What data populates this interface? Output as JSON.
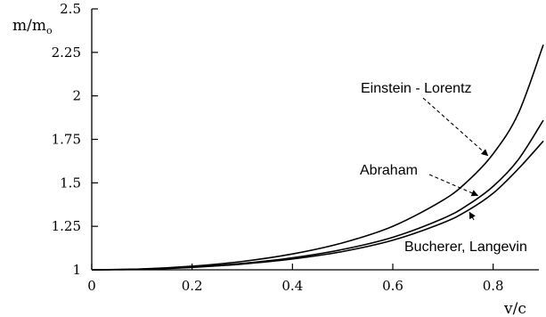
{
  "chart_data": {
    "type": "line",
    "title": "",
    "xlabel": "v/c",
    "ylabel_main": "m/m",
    "ylabel_sub": "o",
    "xlim": [
      0,
      0.9
    ],
    "ylim": [
      1,
      2.5
    ],
    "x_ticks": [
      0,
      0.2,
      0.4,
      0.6,
      0.8
    ],
    "x_tick_labels": [
      "0",
      "0.2",
      "0.4",
      "0.6",
      "0.8"
    ],
    "y_ticks": [
      1,
      1.25,
      1.5,
      1.75,
      2,
      2.25,
      2.5
    ],
    "y_tick_labels": [
      "1",
      "1.25",
      "1.5",
      "1.75",
      "2",
      "2.25",
      "2.5"
    ],
    "grid": false,
    "x": [
      0,
      0.1,
      0.2,
      0.3,
      0.4,
      0.5,
      0.6,
      0.7,
      0.75,
      0.8,
      0.85,
      0.9
    ],
    "series": [
      {
        "name": "Einstein - Lorentz",
        "values": [
          1.0,
          1.005,
          1.021,
          1.048,
          1.091,
          1.155,
          1.25,
          1.4,
          1.512,
          1.667,
          1.898,
          2.294
        ]
      },
      {
        "name": "Abraham",
        "values": [
          1.0,
          1.004,
          1.016,
          1.037,
          1.069,
          1.117,
          1.187,
          1.295,
          1.374,
          1.48,
          1.633,
          1.86
        ]
      },
      {
        "name": "Bucherer, Langevin",
        "values": [
          1.0,
          1.003,
          1.014,
          1.033,
          1.062,
          1.105,
          1.17,
          1.27,
          1.342,
          1.44,
          1.58,
          1.74
        ]
      }
    ],
    "annotations": [
      {
        "text": "Einstein - Lorentz",
        "series": 0,
        "points_to_x": 0.8
      },
      {
        "text": "Abraham",
        "series": 1,
        "points_to_x": 0.78
      },
      {
        "text": "Bucherer, Langevin",
        "series": 2,
        "points_to_x": 0.76
      }
    ]
  }
}
